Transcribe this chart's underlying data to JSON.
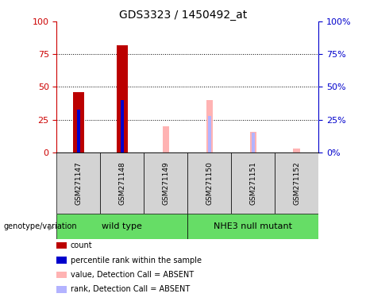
{
  "title": "GDS3323 / 1450492_at",
  "samples": [
    "GSM271147",
    "GSM271148",
    "GSM271149",
    "GSM271150",
    "GSM271151",
    "GSM271152"
  ],
  "count_values": [
    46,
    82,
    0,
    0,
    0,
    0
  ],
  "percentile_rank_values": [
    33,
    40,
    0,
    0,
    0,
    0
  ],
  "value_absent": [
    0,
    0,
    20,
    40,
    16,
    3
  ],
  "rank_absent": [
    0,
    0,
    0,
    28,
    15,
    0
  ],
  "ylim": [
    0,
    100
  ],
  "yticks": [
    0,
    25,
    50,
    75,
    100
  ],
  "count_color": "#bb0000",
  "percentile_color": "#0000cc",
  "value_absent_color": "#ffb3b3",
  "rank_absent_color": "#b3b3ff",
  "left_axis_color": "#cc0000",
  "right_axis_color": "#0000cc",
  "bg_xlabels": "#d3d3d3",
  "group_green": "#66dd66",
  "legend_items": [
    {
      "label": "count",
      "color": "#bb0000"
    },
    {
      "label": "percentile rank within the sample",
      "color": "#0000cc"
    },
    {
      "label": "value, Detection Call = ABSENT",
      "color": "#ffb3b3"
    },
    {
      "label": "rank, Detection Call = ABSENT",
      "color": "#b3b3ff"
    }
  ],
  "count_bar_width": 0.25,
  "prank_bar_width": 0.08,
  "absent_bar_width": 0.15,
  "rank_absent_bar_width": 0.07
}
